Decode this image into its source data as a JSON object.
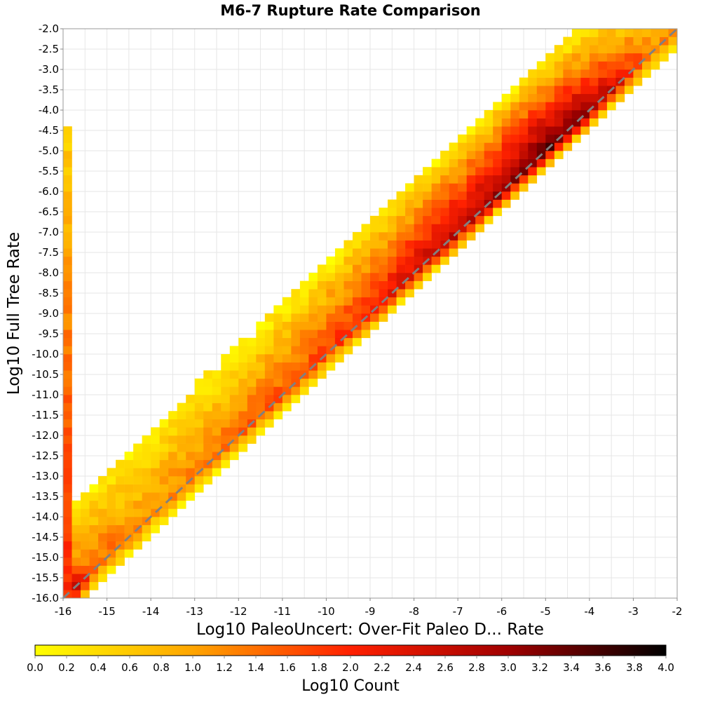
{
  "chart_data": {
    "type": "heatmap",
    "title": "M6-7 Rupture Rate Comparison",
    "xlabel": "Log10 PaleoUncert: Over-Fit Paleo D... Rate",
    "ylabel": "Log10 Full Tree Rate",
    "xlim": [
      -16,
      -2
    ],
    "ylim": [
      -16,
      -2
    ],
    "x_ticks": [
      "-16",
      "-15",
      "-14",
      "-13",
      "-12",
      "-11",
      "-10",
      "-9",
      "-8",
      "-7",
      "-6",
      "-5",
      "-4",
      "-3",
      "-2"
    ],
    "y_ticks": [
      "-2.0",
      "-2.5",
      "-3.0",
      "-3.5",
      "-4.0",
      "-4.5",
      "-5.0",
      "-5.5",
      "-6.0",
      "-6.5",
      "-7.0",
      "-7.5",
      "-8.0",
      "-8.5",
      "-9.0",
      "-9.5",
      "-10.0",
      "-10.5",
      "-11.0",
      "-11.5",
      "-12.0",
      "-12.5",
      "-13.0",
      "-13.5",
      "-14.0",
      "-14.5",
      "-15.0",
      "-15.5",
      "-16.0"
    ],
    "bin_size": 0.2,
    "grid": true,
    "reference_line": {
      "style": "dashed",
      "color": "#808080",
      "from": [
        -16,
        -16
      ],
      "to": [
        -2,
        -2
      ]
    },
    "colorbar": {
      "label": "Log10 Count",
      "range": [
        0.0,
        4.0
      ],
      "ticks": [
        "0.0",
        "0.2",
        "0.4",
        "0.6",
        "0.8",
        "1.0",
        "1.2",
        "1.4",
        "1.6",
        "1.8",
        "2.0",
        "2.2",
        "2.4",
        "2.6",
        "2.8",
        "3.0",
        "3.2",
        "3.4",
        "3.6",
        "3.8",
        "4.0"
      ],
      "colors": [
        "#ffff00",
        "#ffa500",
        "#ff2000",
        "#a00000",
        "#000000"
      ]
    },
    "density_model": {
      "diagonal": [
        [
          -16,
          3.7
        ],
        [
          -15.5,
          1.6
        ],
        [
          -14,
          1.2
        ],
        [
          -12,
          1.5
        ],
        [
          -10,
          1.8
        ],
        [
          -8,
          2.5
        ],
        [
          -6,
          3.0
        ],
        [
          -5,
          3.4
        ],
        [
          -4,
          3.0
        ],
        [
          -2.5,
          1.2
        ]
      ],
      "upper_triangle_width": 2.2,
      "lower_triangle_width": 0.6,
      "left_column_x": -16,
      "left_column_ymax": -4.5,
      "left_column_values": [
        [
          -16,
          2.0
        ],
        [
          -10,
          1.4
        ],
        [
          -4.5,
          0.5
        ]
      ]
    }
  }
}
